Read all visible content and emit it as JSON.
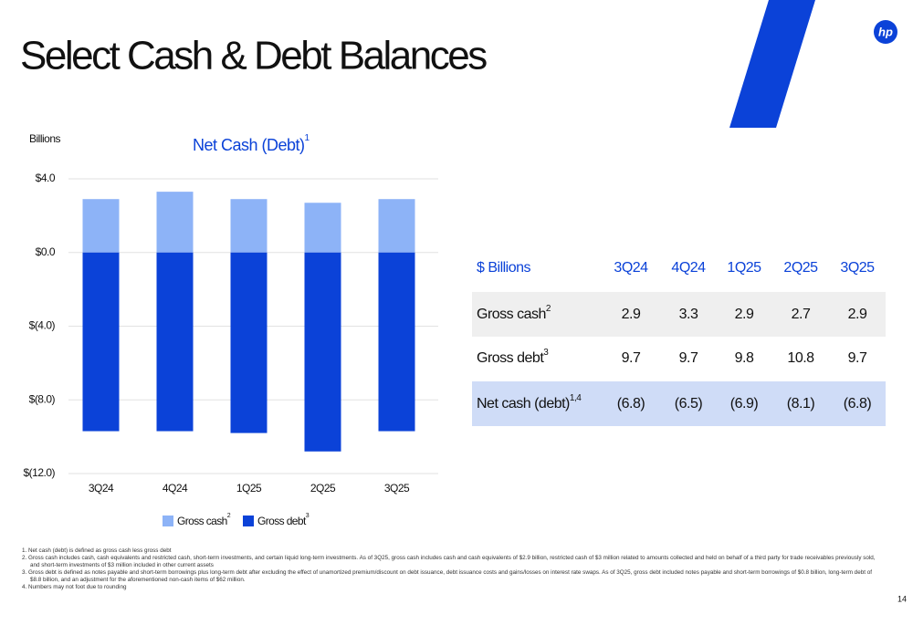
{
  "page_title": "Select Cash & Debt Balances",
  "logo": "hp",
  "page_number": "14",
  "chart_data": {
    "type": "bar",
    "title": "Net Cash (Debt)",
    "title_footnote": "1",
    "y_label": "Billions",
    "categories": [
      "3Q24",
      "4Q24",
      "1Q25",
      "2Q25",
      "3Q25"
    ],
    "series": [
      {
        "name": "Gross cash",
        "footnote": "2",
        "color": "#8db3f7",
        "values": [
          2.9,
          3.3,
          2.9,
          2.7,
          2.9
        ]
      },
      {
        "name": "Gross debt",
        "footnote": "3",
        "color": "#0b42d8",
        "values": [
          -9.7,
          -9.7,
          -9.8,
          -10.8,
          -9.7
        ]
      }
    ],
    "ylim": [
      -12,
      4
    ],
    "yticks": [
      {
        "value": 4,
        "label": "$4.0"
      },
      {
        "value": 0,
        "label": "$0.0"
      },
      {
        "value": -4,
        "label": "$(4.0)"
      },
      {
        "value": -8,
        "label": "$(8.0)"
      },
      {
        "value": -12,
        "label": "$(12.0)"
      }
    ],
    "grid": true
  },
  "table": {
    "header": [
      "$ Billions",
      "3Q24",
      "4Q24",
      "1Q25",
      "2Q25",
      "3Q25"
    ],
    "rows": [
      {
        "label": "Gross cash",
        "footnote": "2",
        "cells": [
          "2.9",
          "3.3",
          "2.9",
          "2.7",
          "2.9"
        ]
      },
      {
        "label": "Gross debt",
        "footnote": "3",
        "cells": [
          "9.7",
          "9.7",
          "9.8",
          "10.8",
          "9.7"
        ]
      },
      {
        "label": "Net cash (debt)",
        "footnote": "1,4",
        "cells": [
          "(6.8)",
          "(6.5)",
          "(6.9)",
          "(8.1)",
          "(6.8)"
        ]
      }
    ]
  },
  "footnotes": [
    "1.  Net cash (debt) is defined as gross cash less gross debt",
    "2.  Gross cash includes cash, cash equivalents and restricted cash, short-term investments, and certain liquid long-term investments. As of 3Q25, gross cash includes cash and cash equivalents of $2.9 billion, restricted cash of $3 million related to amounts collected and held on behalf of a third party for trade receivables previously sold, and short-term investments of $3 million included in other current assets",
    "3.  Gross debt is defined as notes payable and short-term borrowings plus long-term debt after excluding the effect of unamortized premium/discount on debt issuance, debt issuance costs and gains/losses on interest rate swaps.  As of 3Q25, gross debt included notes payable and short-term borrowings of $0.8 billion, long-term debt of $8.8 billion, and an adjustment for the aforementioned non-cash items of $62 million.",
    "4.  Numbers may not foot due to rounding"
  ]
}
